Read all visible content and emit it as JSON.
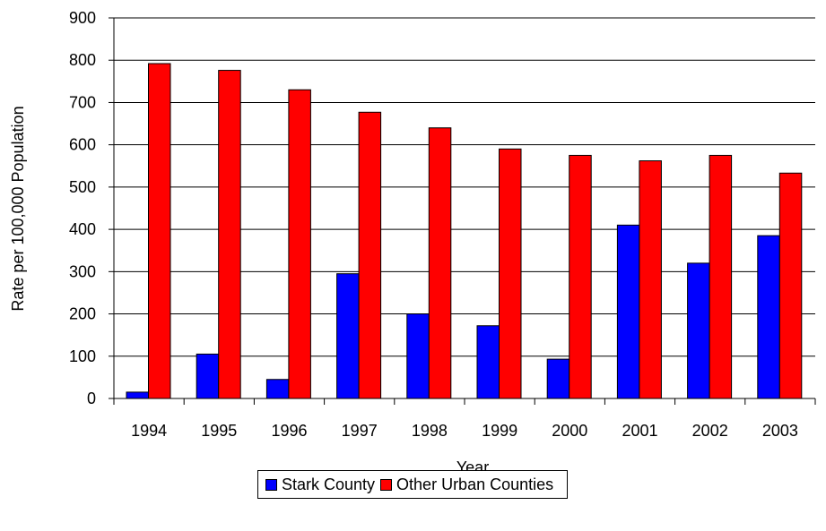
{
  "chart_data": {
    "type": "bar",
    "title": "",
    "xlabel": "Year",
    "ylabel": "Rate per 100,000 Population",
    "ylim": [
      0,
      900
    ],
    "yticks": [
      "0",
      "100",
      "200",
      "300",
      "400",
      "500",
      "600",
      "700",
      "800",
      "900"
    ],
    "grid": "horizontal",
    "legend_position": "bottom",
    "categories": [
      "1994",
      "1995",
      "1996",
      "1997",
      "1998",
      "1999",
      "2000",
      "2001",
      "2002",
      "2003"
    ],
    "series": [
      {
        "name": "Stark County",
        "color": "#0000ff",
        "values": [
          15,
          105,
          45,
          295,
          200,
          172,
          93,
          410,
          320,
          385
        ]
      },
      {
        "name": "Other Urban Counties",
        "color": "#ff0000",
        "values": [
          792,
          776,
          730,
          677,
          640,
          590,
          575,
          562,
          575,
          533
        ]
      }
    ]
  }
}
